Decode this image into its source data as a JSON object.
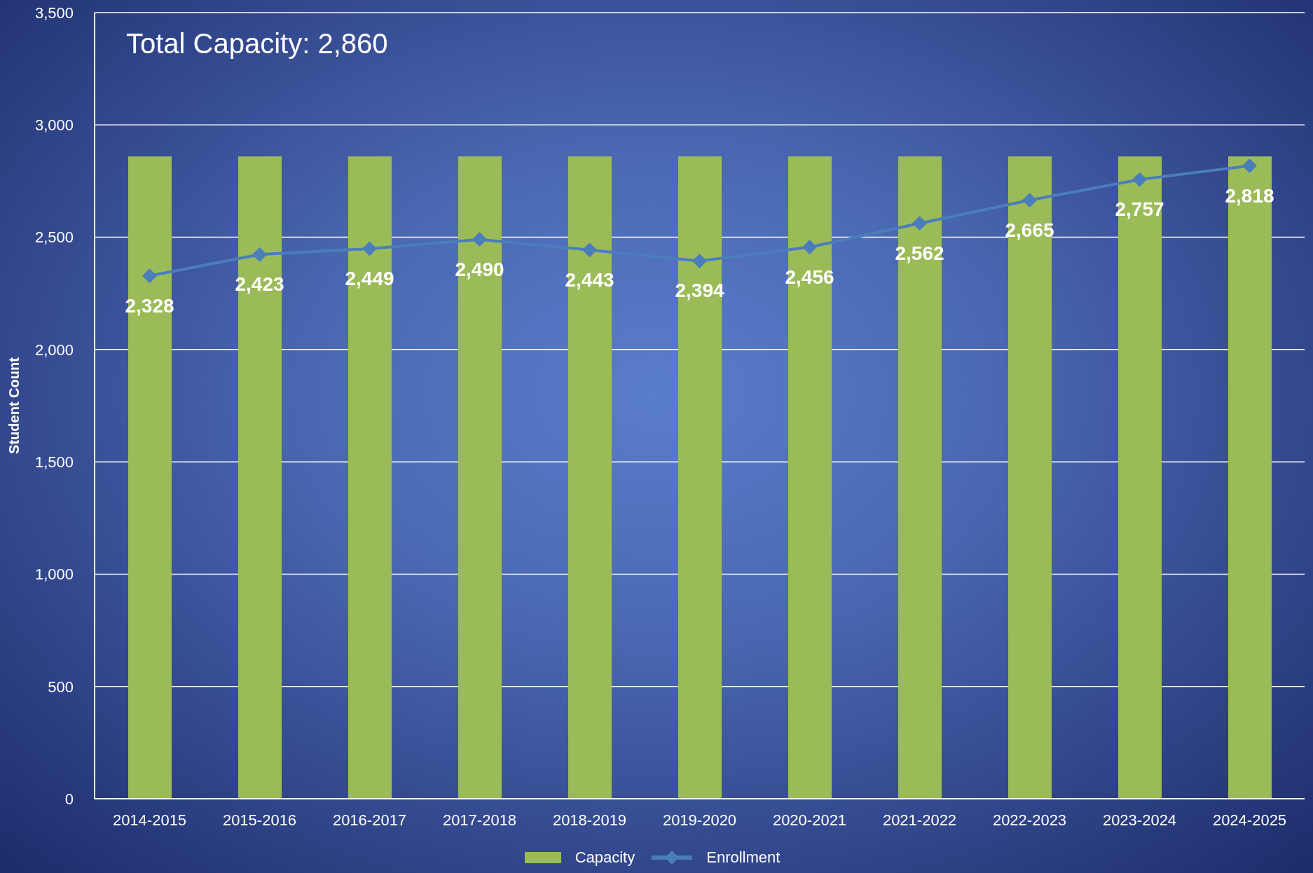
{
  "chart_data": {
    "type": "bar",
    "title": "Total Capacity: 2,860",
    "ylabel": "Student Count",
    "categories": [
      "2014-2015",
      "2015-2016",
      "2016-2017",
      "2017-2018",
      "2018-2019",
      "2019-2020",
      "2020-2021",
      "2021-2022",
      "2022-2023",
      "2023-2024",
      "2024-2025"
    ],
    "series": [
      {
        "name": "Capacity",
        "color": "#9bbb59",
        "values": [
          2860,
          2860,
          2860,
          2860,
          2860,
          2860,
          2860,
          2860,
          2860,
          2860,
          2860
        ]
      },
      {
        "name": "Enrollment",
        "type": "line",
        "color": "#4a7ebb",
        "values": [
          2328,
          2423,
          2449,
          2490,
          2443,
          2394,
          2456,
          2562,
          2665,
          2757,
          2818
        ],
        "value_labels": [
          "2,328",
          "2,423",
          "2,449",
          "2,490",
          "2,443",
          "2,394",
          "2,456",
          "2,562",
          "2,665",
          "2,757",
          "2,818"
        ]
      }
    ],
    "ylim": [
      0,
      3500
    ],
    "yticks": [
      {
        "value": 0,
        "label": "0"
      },
      {
        "value": 500,
        "label": "500"
      },
      {
        "value": 1000,
        "label": "1,000"
      },
      {
        "value": 1500,
        "label": "1,500"
      },
      {
        "value": 2000,
        "label": "2,000"
      },
      {
        "value": 2500,
        "label": "2,500"
      },
      {
        "value": 3000,
        "label": "3,000"
      },
      {
        "value": 3500,
        "label": "3,500"
      }
    ],
    "grid": "y",
    "legend": "bottom",
    "marker": "diamond",
    "line_style": "solid"
  }
}
